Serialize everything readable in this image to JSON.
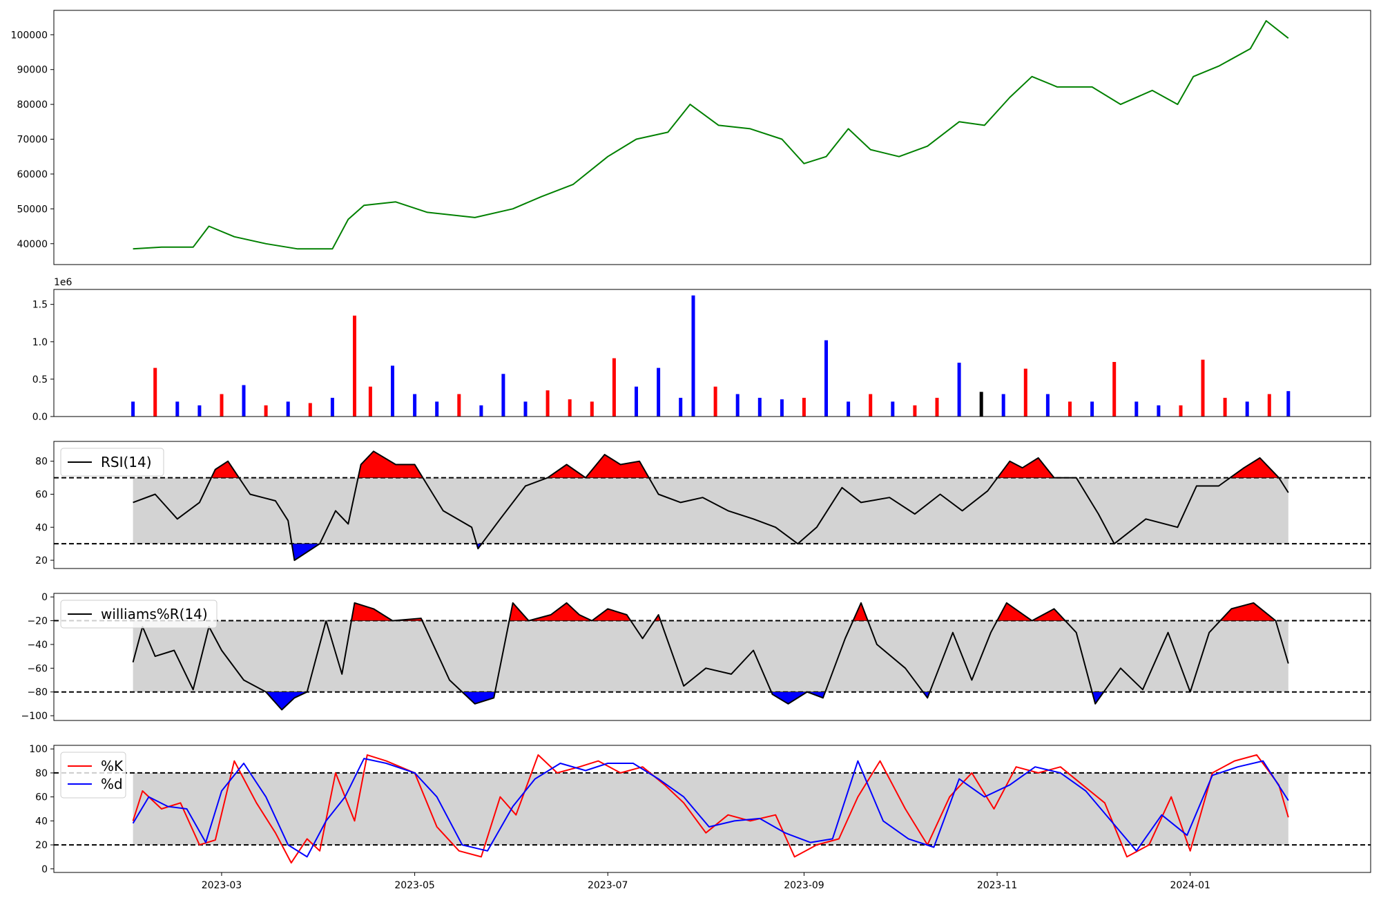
{
  "chart_data": [
    {
      "id": "price",
      "type": "line",
      "ylim": [
        34000,
        107000
      ],
      "yticks": [
        40000,
        50000,
        60000,
        70000,
        80000,
        90000,
        100000
      ],
      "ytick_labels": [
        "40000",
        "50000",
        "60000",
        "70000",
        "80000",
        "90000",
        "100000"
      ],
      "color": "#008000",
      "x": [
        "2023-02-01",
        "2023-02-10",
        "2023-02-20",
        "2023-02-25",
        "2023-03-05",
        "2023-03-15",
        "2023-03-25",
        "2023-04-05",
        "2023-04-10",
        "2023-04-15",
        "2023-04-25",
        "2023-05-05",
        "2023-05-20",
        "2023-06-01",
        "2023-06-10",
        "2023-06-20",
        "2023-07-01",
        "2023-07-10",
        "2023-07-20",
        "2023-07-27",
        "2023-08-05",
        "2023-08-15",
        "2023-08-25",
        "2023-09-01",
        "2023-09-08",
        "2023-09-15",
        "2023-09-22",
        "2023-10-01",
        "2023-10-10",
        "2023-10-20",
        "2023-10-28",
        "2023-11-05",
        "2023-11-12",
        "2023-11-20",
        "2023-12-01",
        "2023-12-10",
        "2023-12-20",
        "2023-12-28",
        "2024-01-02",
        "2024-01-10",
        "2024-01-20",
        "2024-01-25",
        "2024-02-01"
      ],
      "y": [
        38500,
        39000,
        39000,
        45000,
        42000,
        40000,
        38500,
        38500,
        47000,
        51000,
        52000,
        49000,
        47500,
        50000,
        53500,
        57000,
        65000,
        70000,
        72000,
        80000,
        74000,
        73000,
        70000,
        63000,
        65000,
        73000,
        67000,
        65000,
        68000,
        75000,
        74000,
        82000,
        88000,
        85000,
        85000,
        80000,
        84000,
        80000,
        88000,
        91000,
        96000,
        104000,
        99000
      ]
    },
    {
      "id": "volume",
      "type": "bar",
      "ylim": [
        0,
        1700000
      ],
      "yticks": [
        0,
        500000,
        1000000,
        1500000
      ],
      "ytick_labels": [
        "0.0",
        "0.5",
        "1.0",
        "1.5"
      ],
      "offset_label": "1e6",
      "colors": {
        "up": "#ff0000",
        "down": "#0000ff",
        "flat": "#000000"
      },
      "x": [
        "2023-02-01",
        "2023-02-08",
        "2023-02-15",
        "2023-02-22",
        "2023-03-01",
        "2023-03-08",
        "2023-03-15",
        "2023-03-22",
        "2023-03-29",
        "2023-04-05",
        "2023-04-12",
        "2023-04-17",
        "2023-04-24",
        "2023-05-01",
        "2023-05-08",
        "2023-05-15",
        "2023-05-22",
        "2023-05-29",
        "2023-06-05",
        "2023-06-12",
        "2023-06-19",
        "2023-06-26",
        "2023-07-03",
        "2023-07-10",
        "2023-07-17",
        "2023-07-24",
        "2023-07-28",
        "2023-08-04",
        "2023-08-11",
        "2023-08-18",
        "2023-08-25",
        "2023-09-01",
        "2023-09-08",
        "2023-09-15",
        "2023-09-22",
        "2023-09-29",
        "2023-10-06",
        "2023-10-13",
        "2023-10-20",
        "2023-10-27",
        "2023-11-03",
        "2023-11-10",
        "2023-11-17",
        "2023-11-24",
        "2023-12-01",
        "2023-12-08",
        "2023-12-15",
        "2023-12-22",
        "2023-12-29",
        "2024-01-05",
        "2024-01-12",
        "2024-01-19",
        "2024-01-26",
        "2024-02-01"
      ],
      "values": [
        200000,
        650000,
        200000,
        150000,
        300000,
        420000,
        150000,
        200000,
        180000,
        250000,
        1350000,
        400000,
        680000,
        300000,
        200000,
        300000,
        150000,
        570000,
        200000,
        350000,
        230000,
        200000,
        780000,
        400000,
        650000,
        250000,
        1620000,
        400000,
        300000,
        250000,
        230000,
        250000,
        1020000,
        200000,
        300000,
        200000,
        150000,
        250000,
        720000,
        330000,
        300000,
        640000,
        300000,
        200000,
        200000,
        730000,
        200000,
        150000,
        150000,
        760000,
        250000,
        200000,
        300000,
        340000
      ],
      "dir": [
        "down",
        "up",
        "down",
        "down",
        "up",
        "down",
        "up",
        "down",
        "up",
        "down",
        "up",
        "up",
        "down",
        "down",
        "down",
        "up",
        "down",
        "down",
        "down",
        "up",
        "up",
        "up",
        "up",
        "down",
        "down",
        "down",
        "down",
        "up",
        "down",
        "down",
        "down",
        "up",
        "down",
        "down",
        "up",
        "down",
        "up",
        "up",
        "down",
        "flat",
        "down",
        "up",
        "down",
        "up",
        "down",
        "up",
        "down",
        "down",
        "up",
        "up",
        "up",
        "down",
        "up",
        "down"
      ]
    },
    {
      "id": "rsi",
      "type": "line",
      "legend": [
        "RSI(14)"
      ],
      "ylim": [
        15,
        92
      ],
      "yticks": [
        20,
        40,
        60,
        80
      ],
      "ytick_labels": [
        "20",
        "40",
        "60",
        "80"
      ],
      "upper": 70,
      "lower": 30,
      "color": "#000000",
      "fill_colors": {
        "band": "#d3d3d3",
        "over": "#ff0000",
        "under": "#0000ff"
      },
      "x": [
        "2023-02-01",
        "2023-02-08",
        "2023-02-15",
        "2023-02-22",
        "2023-02-27",
        "2023-03-03",
        "2023-03-10",
        "2023-03-18",
        "2023-03-22",
        "2023-03-24",
        "2023-04-01",
        "2023-04-06",
        "2023-04-10",
        "2023-04-14",
        "2023-04-18",
        "2023-04-25",
        "2023-05-01",
        "2023-05-10",
        "2023-05-19",
        "2023-05-21",
        "2023-05-28",
        "2023-06-05",
        "2023-06-12",
        "2023-06-18",
        "2023-06-24",
        "2023-06-30",
        "2023-07-05",
        "2023-07-11",
        "2023-07-17",
        "2023-07-24",
        "2023-07-31",
        "2023-08-08",
        "2023-08-16",
        "2023-08-23",
        "2023-08-30",
        "2023-09-05",
        "2023-09-13",
        "2023-09-19",
        "2023-09-28",
        "2023-10-06",
        "2023-10-14",
        "2023-10-21",
        "2023-10-29",
        "2023-11-05",
        "2023-11-09",
        "2023-11-14",
        "2023-11-19",
        "2023-11-26",
        "2023-12-03",
        "2023-12-08",
        "2023-12-18",
        "2023-12-28",
        "2024-01-03",
        "2024-01-10",
        "2024-01-18",
        "2024-01-23",
        "2024-01-29",
        "2024-02-01"
      ],
      "y": [
        55,
        60,
        45,
        55,
        75,
        80,
        60,
        56,
        44,
        20,
        30,
        50,
        42,
        78,
        86,
        78,
        78,
        50,
        40,
        27,
        45,
        65,
        70,
        78,
        70,
        84,
        78,
        80,
        60,
        55,
        58,
        50,
        45,
        40,
        30,
        40,
        64,
        55,
        58,
        48,
        60,
        50,
        62,
        80,
        76,
        82,
        70,
        70,
        48,
        30,
        45,
        40,
        65,
        65,
        76,
        82,
        70,
        61
      ]
    },
    {
      "id": "williams",
      "type": "line",
      "legend": [
        "williams%R(14)"
      ],
      "ylim": [
        -104,
        3
      ],
      "yticks": [
        0,
        -20,
        -40,
        -60,
        -80,
        -100
      ],
      "ytick_labels": [
        "0",
        "−20",
        "−40",
        "−60",
        "−80",
        "−100"
      ],
      "upper": -20,
      "lower": -80,
      "color": "#000000",
      "fill_colors": {
        "band": "#d3d3d3",
        "over": "#ff0000",
        "under": "#0000ff"
      },
      "x": [
        "2023-02-01",
        "2023-02-04",
        "2023-02-08",
        "2023-02-14",
        "2023-02-20",
        "2023-02-25",
        "2023-03-01",
        "2023-03-08",
        "2023-03-15",
        "2023-03-20",
        "2023-03-24",
        "2023-03-28",
        "2023-04-03",
        "2023-04-08",
        "2023-04-12",
        "2023-04-18",
        "2023-04-24",
        "2023-05-03",
        "2023-05-12",
        "2023-05-20",
        "2023-05-26",
        "2023-06-01",
        "2023-06-06",
        "2023-06-13",
        "2023-06-18",
        "2023-06-22",
        "2023-06-26",
        "2023-07-01",
        "2023-07-07",
        "2023-07-12",
        "2023-07-17",
        "2023-07-25",
        "2023-08-01",
        "2023-08-09",
        "2023-08-16",
        "2023-08-22",
        "2023-08-27",
        "2023-09-02",
        "2023-09-07",
        "2023-09-14",
        "2023-09-19",
        "2023-09-24",
        "2023-10-03",
        "2023-10-10",
        "2023-10-18",
        "2023-10-24",
        "2023-10-30",
        "2023-11-04",
        "2023-11-12",
        "2023-11-19",
        "2023-11-26",
        "2023-12-02",
        "2023-12-10",
        "2023-12-17",
        "2023-12-25",
        "2024-01-01",
        "2024-01-07",
        "2024-01-14",
        "2024-01-21",
        "2024-01-28",
        "2024-02-01"
      ],
      "y": [
        -55,
        -25,
        -50,
        -45,
        -78,
        -25,
        -45,
        -70,
        -80,
        -95,
        -85,
        -80,
        -20,
        -65,
        -5,
        -10,
        -20,
        -18,
        -70,
        -90,
        -85,
        -5,
        -20,
        -15,
        -5,
        -15,
        -20,
        -10,
        -15,
        -35,
        -15,
        -75,
        -60,
        -65,
        -45,
        -82,
        -90,
        -80,
        -85,
        -35,
        -5,
        -40,
        -60,
        -85,
        -30,
        -70,
        -30,
        -5,
        -20,
        -10,
        -30,
        -90,
        -60,
        -78,
        -30,
        -80,
        -30,
        -10,
        -5,
        -20,
        -56
      ]
    },
    {
      "id": "stochastic",
      "type": "line",
      "legend": [
        "%K",
        "%d"
      ],
      "ylim": [
        -3,
        103
      ],
      "yticks": [
        0,
        20,
        40,
        60,
        80,
        100
      ],
      "ytick_labels": [
        "0",
        "20",
        "40",
        "60",
        "80",
        "100"
      ],
      "upper": 80,
      "lower": 20,
      "fill_colors": {
        "band": "#d3d3d3"
      },
      "xticks": [
        "2023-03-01",
        "2023-05-01",
        "2023-07-01",
        "2023-09-01",
        "2023-11-01",
        "2024-01-01"
      ],
      "xtick_labels": [
        "2023-03",
        "2023-05",
        "2023-07",
        "2023-09",
        "2023-11",
        "2024-01"
      ],
      "series": [
        {
          "name": "%K",
          "color": "#ff0000",
          "x": [
            "2023-02-01",
            "2023-02-04",
            "2023-02-10",
            "2023-02-16",
            "2023-02-22",
            "2023-02-27",
            "2023-03-05",
            "2023-03-12",
            "2023-03-18",
            "2023-03-23",
            "2023-03-28",
            "2023-04-01",
            "2023-04-06",
            "2023-04-12",
            "2023-04-16",
            "2023-04-22",
            "2023-05-01",
            "2023-05-08",
            "2023-05-15",
            "2023-05-22",
            "2023-05-28",
            "2023-06-02",
            "2023-06-09",
            "2023-06-15",
            "2023-06-22",
            "2023-06-28",
            "2023-07-05",
            "2023-07-12",
            "2023-07-19",
            "2023-07-25",
            "2023-08-01",
            "2023-08-08",
            "2023-08-15",
            "2023-08-23",
            "2023-08-29",
            "2023-09-05",
            "2023-09-12",
            "2023-09-18",
            "2023-09-25",
            "2023-10-03",
            "2023-10-10",
            "2023-10-17",
            "2023-10-24",
            "2023-10-31",
            "2023-11-07",
            "2023-11-14",
            "2023-11-21",
            "2023-11-28",
            "2023-12-05",
            "2023-12-12",
            "2023-12-19",
            "2023-12-26",
            "2024-01-01",
            "2024-01-08",
            "2024-01-15",
            "2024-01-22",
            "2024-01-29",
            "2024-02-01"
          ],
          "y": [
            40,
            65,
            50,
            55,
            20,
            24,
            90,
            55,
            30,
            5,
            25,
            15,
            80,
            40,
            95,
            90,
            80,
            35,
            15,
            10,
            60,
            45,
            95,
            80,
            85,
            90,
            80,
            85,
            70,
            55,
            30,
            45,
            40,
            45,
            10,
            20,
            25,
            60,
            90,
            50,
            20,
            60,
            80,
            50,
            85,
            80,
            85,
            70,
            55,
            10,
            20,
            60,
            15,
            80,
            90,
            95,
            70,
            43
          ]
        },
        {
          "name": "%d",
          "color": "#0000ff",
          "x": [
            "2023-02-01",
            "2023-02-06",
            "2023-02-12",
            "2023-02-18",
            "2023-02-24",
            "2023-03-01",
            "2023-03-08",
            "2023-03-15",
            "2023-03-22",
            "2023-03-28",
            "2023-04-03",
            "2023-04-09",
            "2023-04-15",
            "2023-04-22",
            "2023-05-01",
            "2023-05-08",
            "2023-05-16",
            "2023-05-24",
            "2023-06-01",
            "2023-06-08",
            "2023-06-16",
            "2023-06-24",
            "2023-07-01",
            "2023-07-09",
            "2023-07-17",
            "2023-07-25",
            "2023-08-02",
            "2023-08-10",
            "2023-08-18",
            "2023-08-26",
            "2023-09-03",
            "2023-09-10",
            "2023-09-18",
            "2023-09-26",
            "2023-10-04",
            "2023-10-12",
            "2023-10-20",
            "2023-10-28",
            "2023-11-05",
            "2023-11-13",
            "2023-11-21",
            "2023-11-29",
            "2023-12-07",
            "2023-12-15",
            "2023-12-23",
            "2023-12-31",
            "2024-01-08",
            "2024-01-16",
            "2024-01-24",
            "2024-02-01"
          ],
          "y": [
            38,
            60,
            52,
            50,
            22,
            65,
            88,
            60,
            20,
            10,
            40,
            60,
            92,
            88,
            80,
            60,
            20,
            15,
            52,
            75,
            88,
            82,
            88,
            88,
            75,
            60,
            35,
            40,
            42,
            30,
            22,
            25,
            90,
            40,
            25,
            18,
            75,
            60,
            70,
            85,
            80,
            65,
            40,
            15,
            45,
            28,
            78,
            85,
            90,
            57
          ]
        }
      ]
    }
  ]
}
